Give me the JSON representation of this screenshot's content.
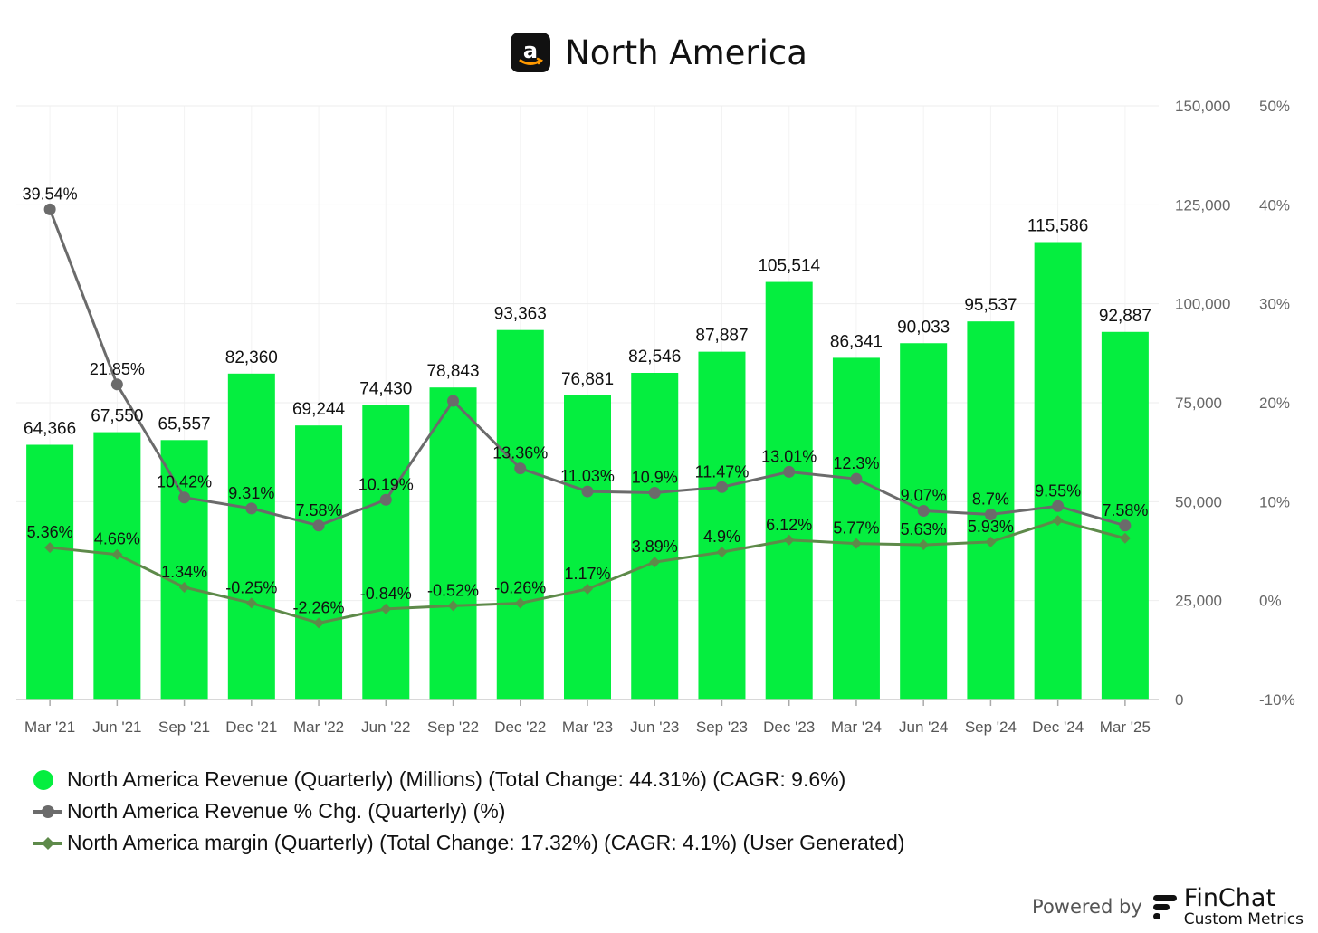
{
  "title": "North America",
  "chart_data": {
    "type": "bar",
    "categories": [
      "Mar '21",
      "Jun '21",
      "Sep '21",
      "Dec '21",
      "Mar '22",
      "Jun '22",
      "Sep '22",
      "Dec '22",
      "Mar '23",
      "Jun '23",
      "Sep '23",
      "Dec '23",
      "Mar '24",
      "Jun '24",
      "Sep '24",
      "Dec '24",
      "Mar '25"
    ],
    "series": [
      {
        "name": "North America Revenue (Quarterly) (Millions) (Total Change: 44.31%) (CAGR: 9.6%)",
        "type": "bar",
        "axis": "left",
        "color": "#05ee3f",
        "values": [
          64366,
          67550,
          65557,
          82360,
          69244,
          74430,
          78843,
          93363,
          76881,
          82546,
          87887,
          105514,
          86341,
          90033,
          95537,
          115586,
          92887
        ],
        "labels": [
          "64,366",
          "67,550",
          "65,557",
          "82,360",
          "69,244",
          "74,430",
          "78,843",
          "93,363",
          "76,881",
          "82,546",
          "87,887",
          "105,514",
          "86,341",
          "90,033",
          "95,537",
          "115,586",
          "92,887"
        ]
      },
      {
        "name": "North America Revenue % Chg. (Quarterly) (%)",
        "type": "line",
        "axis": "right",
        "color": "#6b6b6b",
        "marker": "circle",
        "values": [
          39.54,
          21.85,
          10.42,
          9.31,
          7.58,
          10.19,
          20.18,
          13.36,
          11.03,
          10.9,
          11.47,
          13.01,
          12.3,
          9.07,
          8.7,
          9.55,
          7.58
        ],
        "labels": [
          "39.54%",
          "21.85%",
          "10.42%",
          "9.31%",
          "7.58%",
          "10.19%",
          "",
          "13.36%",
          "11.03%",
          "10.9%",
          "11.47%",
          "13.01%",
          "12.3%",
          "9.07%",
          "8.7%",
          "9.55%",
          "7.58%"
        ]
      },
      {
        "name": "North America margin (Quarterly) (Total Change: 17.32%) (CAGR: 4.1%) (User Generated)",
        "type": "line",
        "axis": "right",
        "color": "#5e8a4a",
        "marker": "diamond",
        "values": [
          5.36,
          4.66,
          1.34,
          -0.25,
          -2.26,
          -0.84,
          -0.52,
          -0.26,
          1.17,
          3.89,
          4.9,
          6.12,
          5.77,
          5.63,
          5.93,
          8.1,
          6.3
        ],
        "labels": [
          "5.36%",
          "4.66%",
          "1.34%",
          "-0.25%",
          "-2.26%",
          "-0.84%",
          "-0.52%",
          "-0.26%",
          "1.17%",
          "3.89%",
          "4.9%",
          "6.12%",
          "5.77%",
          "5.63%",
          "5.93%",
          "",
          ""
        ]
      }
    ],
    "y_left": {
      "min": 0,
      "max": 150000,
      "ticks": [
        "0",
        "25,000",
        "50,000",
        "75,000",
        "100,000",
        "125,000",
        "150,000"
      ]
    },
    "y_right": {
      "min": -10,
      "max": 50,
      "ticks": [
        "-10%",
        "0%",
        "10%",
        "20%",
        "30%",
        "40%",
        "50%"
      ]
    },
    "grid": true,
    "legend_position": "bottom-left"
  },
  "footer": {
    "powered_by": "Powered by",
    "brand": "FinChat",
    "sub": "Custom Metrics"
  }
}
